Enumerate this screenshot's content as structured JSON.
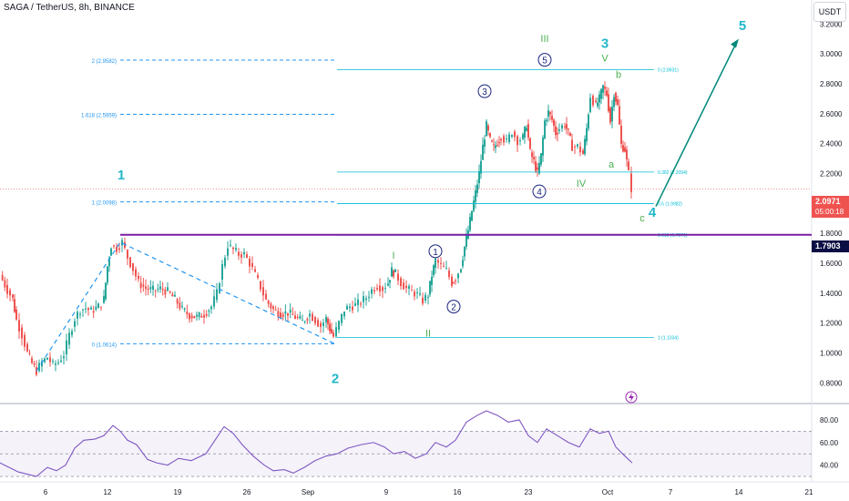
{
  "header": {
    "symbol_title": "SAGA / TetherUS, 8h, BINANCE",
    "currency": "USDT"
  },
  "badges": {
    "last_price": "2.0971",
    "countdown": "05:00:18",
    "horizontal_level": "1.7903"
  },
  "chart_data": {
    "type": "candlestick",
    "pair": "SAGA / TetherUS",
    "timeframe": "8h",
    "exchange": "BINANCE",
    "y_axis": {
      "ticks": [
        3.2,
        3.0,
        2.8,
        2.6,
        2.4,
        2.2,
        2.0,
        1.8,
        1.6,
        1.4,
        1.2,
        1.0,
        0.8
      ],
      "tick_labels": [
        "3.2000",
        "3.0000",
        "2.8000",
        "2.6000",
        "2.4000",
        "2.2000",
        "2.0000",
        "1.8000",
        "1.6000",
        "1.4000",
        "1.2000",
        "1.0000",
        "0.8000"
      ],
      "range": [
        0.68,
        3.36
      ]
    },
    "x_axis": {
      "labels": [
        "6",
        "12",
        "19",
        "26",
        "Sep",
        "9",
        "16",
        "23",
        "Oct",
        "7",
        "14",
        "21"
      ]
    },
    "price_path": [
      [
        0,
        1.52
      ],
      [
        8,
        1.42
      ],
      [
        14,
        1.36
      ],
      [
        18,
        1.22
      ],
      [
        24,
        1.12
      ],
      [
        30,
        1.0
      ],
      [
        35,
        0.93
      ],
      [
        40,
        0.88
      ],
      [
        46,
        0.94
      ],
      [
        52,
        0.97
      ],
      [
        58,
        0.92
      ],
      [
        64,
        0.94
      ],
      [
        70,
        0.99
      ],
      [
        76,
        1.12
      ],
      [
        82,
        1.23
      ],
      [
        88,
        1.29
      ],
      [
        94,
        1.3
      ],
      [
        100,
        1.28
      ],
      [
        108,
        1.31
      ],
      [
        114,
        1.36
      ],
      [
        118,
        1.58
      ],
      [
        122,
        1.72
      ],
      [
        128,
        1.7
      ],
      [
        134,
        1.74
      ],
      [
        140,
        1.64
      ],
      [
        146,
        1.56
      ],
      [
        152,
        1.47
      ],
      [
        160,
        1.43
      ],
      [
        168,
        1.42
      ],
      [
        176,
        1.43
      ],
      [
        184,
        1.41
      ],
      [
        192,
        1.36
      ],
      [
        200,
        1.29
      ],
      [
        208,
        1.25
      ],
      [
        216,
        1.24
      ],
      [
        224,
        1.26
      ],
      [
        232,
        1.31
      ],
      [
        238,
        1.4
      ],
      [
        244,
        1.58
      ],
      [
        250,
        1.72
      ],
      [
        256,
        1.69
      ],
      [
        262,
        1.66
      ],
      [
        268,
        1.66
      ],
      [
        274,
        1.6
      ],
      [
        280,
        1.52
      ],
      [
        286,
        1.44
      ],
      [
        292,
        1.35
      ],
      [
        300,
        1.29
      ],
      [
        308,
        1.26
      ],
      [
        316,
        1.27
      ],
      [
        324,
        1.24
      ],
      [
        332,
        1.21
      ],
      [
        340,
        1.26
      ],
      [
        346,
        1.22
      ],
      [
        352,
        1.18
      ],
      [
        358,
        1.23
      ],
      [
        362,
        1.16
      ],
      [
        366,
        1.11
      ],
      [
        372,
        1.2
      ],
      [
        378,
        1.29
      ],
      [
        384,
        1.31
      ],
      [
        390,
        1.32
      ],
      [
        396,
        1.34
      ],
      [
        402,
        1.37
      ],
      [
        408,
        1.42
      ],
      [
        414,
        1.45
      ],
      [
        420,
        1.43
      ],
      [
        426,
        1.47
      ],
      [
        430,
        1.55
      ],
      [
        434,
        1.53
      ],
      [
        440,
        1.47
      ],
      [
        446,
        1.43
      ],
      [
        452,
        1.41
      ],
      [
        458,
        1.39
      ],
      [
        464,
        1.35
      ],
      [
        470,
        1.39
      ],
      [
        474,
        1.52
      ],
      [
        478,
        1.62
      ],
      [
        484,
        1.58
      ],
      [
        490,
        1.55
      ],
      [
        496,
        1.47
      ],
      [
        500,
        1.5
      ],
      [
        506,
        1.58
      ],
      [
        510,
        1.71
      ],
      [
        514,
        1.82
      ],
      [
        518,
        1.95
      ],
      [
        522,
        2.07
      ],
      [
        526,
        2.2
      ],
      [
        530,
        2.38
      ],
      [
        534,
        2.52
      ],
      [
        538,
        2.42
      ],
      [
        542,
        2.37
      ],
      [
        546,
        2.41
      ],
      [
        550,
        2.45
      ],
      [
        556,
        2.41
      ],
      [
        562,
        2.48
      ],
      [
        568,
        2.42
      ],
      [
        574,
        2.44
      ],
      [
        578,
        2.53
      ],
      [
        582,
        2.34
      ],
      [
        586,
        2.28
      ],
      [
        590,
        2.2
      ],
      [
        594,
        2.32
      ],
      [
        598,
        2.55
      ],
      [
        602,
        2.61
      ],
      [
        606,
        2.56
      ],
      [
        610,
        2.47
      ],
      [
        614,
        2.5
      ],
      [
        620,
        2.53
      ],
      [
        624,
        2.47
      ],
      [
        628,
        2.38
      ],
      [
        634,
        2.38
      ],
      [
        640,
        2.33
      ],
      [
        644,
        2.5
      ],
      [
        648,
        2.72
      ],
      [
        654,
        2.65
      ],
      [
        658,
        2.7
      ],
      [
        662,
        2.78
      ],
      [
        666,
        2.73
      ],
      [
        670,
        2.55
      ],
      [
        674,
        2.74
      ],
      [
        678,
        2.65
      ],
      [
        682,
        2.39
      ],
      [
        686,
        2.36
      ],
      [
        690,
        2.2
      ],
      [
        693,
        2.1
      ]
    ],
    "rsi": {
      "ticks": [
        80,
        60,
        40
      ],
      "tick_labels": [
        "80.00",
        "60.00",
        "40.00"
      ],
      "bands": [
        70,
        50,
        30
      ],
      "values": [
        [
          0,
          42
        ],
        [
          10,
          38
        ],
        [
          20,
          34
        ],
        [
          30,
          32
        ],
        [
          40,
          30
        ],
        [
          52,
          38
        ],
        [
          62,
          35
        ],
        [
          72,
          40
        ],
        [
          82,
          55
        ],
        [
          92,
          62
        ],
        [
          104,
          63
        ],
        [
          114,
          66
        ],
        [
          124,
          75
        ],
        [
          132,
          70
        ],
        [
          140,
          62
        ],
        [
          150,
          58
        ],
        [
          162,
          45
        ],
        [
          172,
          42
        ],
        [
          184,
          40
        ],
        [
          196,
          46
        ],
        [
          210,
          44
        ],
        [
          226,
          50
        ],
        [
          236,
          62
        ],
        [
          246,
          74
        ],
        [
          256,
          68
        ],
        [
          266,
          58
        ],
        [
          278,
          48
        ],
        [
          290,
          40
        ],
        [
          300,
          35
        ],
        [
          312,
          36
        ],
        [
          322,
          33
        ],
        [
          334,
          38
        ],
        [
          346,
          44
        ],
        [
          358,
          48
        ],
        [
          370,
          50
        ],
        [
          382,
          55
        ],
        [
          396,
          58
        ],
        [
          410,
          60
        ],
        [
          422,
          56
        ],
        [
          432,
          50
        ],
        [
          444,
          52
        ],
        [
          456,
          46
        ],
        [
          468,
          50
        ],
        [
          478,
          60
        ],
        [
          490,
          56
        ],
        [
          500,
          62
        ],
        [
          512,
          78
        ],
        [
          524,
          84
        ],
        [
          534,
          88
        ],
        [
          546,
          84
        ],
        [
          558,
          78
        ],
        [
          570,
          80
        ],
        [
          580,
          66
        ],
        [
          590,
          60
        ],
        [
          600,
          72
        ],
        [
          612,
          66
        ],
        [
          624,
          60
        ],
        [
          636,
          56
        ],
        [
          648,
          72
        ],
        [
          658,
          68
        ],
        [
          668,
          70
        ],
        [
          676,
          56
        ],
        [
          686,
          48
        ],
        [
          694,
          42
        ]
      ]
    },
    "fib_left": {
      "levels": [
        {
          "ratio": "2",
          "price": 2.9582,
          "label": "2 (2.9582)"
        },
        {
          "ratio": "1.618",
          "price": 2.5959,
          "label": "1.618 (2.5959)"
        },
        {
          "ratio": "1",
          "price": 2.0098,
          "label": "1 (2.0098)"
        },
        {
          "ratio": "0",
          "price": 1.0614,
          "label": "0 (1.0614)"
        }
      ]
    },
    "fib_right": {
      "levels": [
        {
          "ratio": "0",
          "price": 2.8931,
          "label": "0 (2.8931)"
        },
        {
          "ratio": "0.382",
          "price": 2.2094,
          "label": "0.382 (2.2094)"
        },
        {
          "ratio": "0.5",
          "price": 1.9982,
          "label": "0.5 (1.9982)"
        },
        {
          "ratio": "0.618",
          "price": 1.7871,
          "label": "0.618 (1.7871)"
        },
        {
          "ratio": "1",
          "price": 1.1034,
          "label": "1 (1.1034)"
        }
      ]
    },
    "horizontal_line": 1.7903,
    "last_price": 2.0971,
    "wave_labels": {
      "primary": [
        {
          "text": "1",
          "x": 133,
          "p": 2.16
        },
        {
          "text": "2",
          "x": 368,
          "p": 0.8
        },
        {
          "text": "3",
          "x": 664,
          "p": 3.04
        },
        {
          "text": "4",
          "x": 716,
          "p": 1.91
        },
        {
          "text": "5",
          "x": 815,
          "p": 3.16
        }
      ],
      "intermediate_green": [
        {
          "text": "I",
          "x": 432,
          "p": 1.63
        },
        {
          "text": "II",
          "x": 470,
          "p": 1.11
        },
        {
          "text": "III",
          "x": 598,
          "p": 3.08
        },
        {
          "text": "IV",
          "x": 638,
          "p": 2.11
        },
        {
          "text": "V",
          "x": 664,
          "p": 2.95
        }
      ],
      "abc": [
        {
          "text": "a",
          "x": 671,
          "p": 2.24
        },
        {
          "text": "b",
          "x": 679,
          "p": 2.84
        },
        {
          "text": "c",
          "x": 705,
          "p": 1.88
        }
      ],
      "circled": [
        {
          "text": "1",
          "x": 478,
          "p": 1.68
        },
        {
          "text": "2",
          "x": 498,
          "p": 1.31
        },
        {
          "text": "3",
          "x": 532,
          "p": 2.75
        },
        {
          "text": "4",
          "x": 592,
          "p": 2.08
        },
        {
          "text": "5",
          "x": 598,
          "p": 2.96
        }
      ]
    },
    "colors": {
      "bull": "#26a69a",
      "bear": "#ef5350",
      "primary_label": "#22b7c9",
      "intermediate_label": "#4caf50",
      "fib_left": "#2196f3",
      "fib_right": "#00bcd4",
      "horizontal_line": "#7b1fa2",
      "forecast_arrow": "#00897b",
      "rsi_line": "#7e57c2",
      "circled": "#1a237e"
    }
  }
}
